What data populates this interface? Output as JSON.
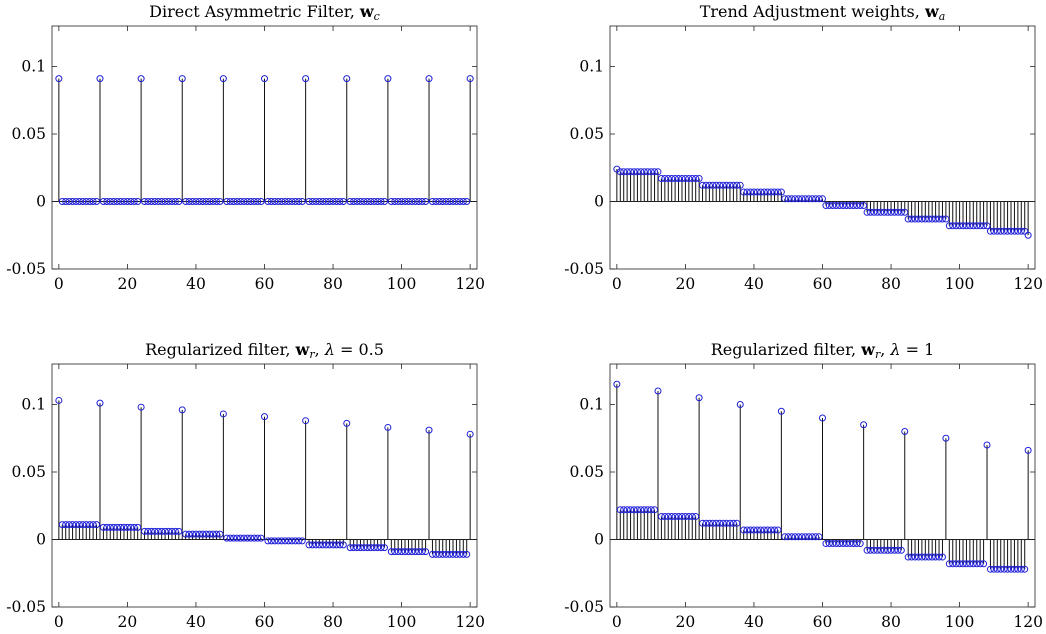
{
  "colors": {
    "marker": "#1f1fd8",
    "stem": "#111111"
  },
  "chart_data": [
    {
      "type": "stem",
      "title": "Direct Asymmetric Filter, w",
      "title_sub": "c",
      "title_lambda": "",
      "xlim": [
        -2,
        122
      ],
      "ylim": [
        -0.05,
        0.13
      ],
      "xticks": [
        0,
        20,
        40,
        60,
        80,
        100,
        120
      ],
      "xticklabels": [
        "0",
        "20",
        "40",
        "60",
        "80",
        "100",
        "120"
      ],
      "yticks": [
        -0.05,
        0,
        0.05,
        0.1
      ],
      "yticklabels": [
        "-0.05",
        "0",
        "0.05",
        "0.1"
      ],
      "spikes": [
        0.091,
        0.091,
        0.091,
        0.091,
        0.091,
        0.091,
        0.091,
        0.091,
        0.091,
        0.091,
        0.091
      ],
      "block_values": [
        0,
        0,
        0,
        0,
        0,
        0,
        0,
        0,
        0,
        0
      ],
      "spike_period": 12,
      "n_points": 121
    },
    {
      "type": "stem",
      "title": "Trend Adjustment weights, w",
      "title_sub": "a",
      "title_lambda": "",
      "xlim": [
        -2,
        122
      ],
      "ylim": [
        -0.05,
        0.13
      ],
      "xticks": [
        0,
        20,
        40,
        60,
        80,
        100,
        120
      ],
      "xticklabels": [
        "0",
        "20",
        "40",
        "60",
        "80",
        "100",
        "120"
      ],
      "yticks": [
        -0.05,
        0,
        0.05,
        0.1
      ],
      "yticklabels": [
        "-0.05",
        "0",
        "0.05",
        "0.1"
      ],
      "spikes": [
        0.024,
        0.022,
        0.017,
        0.012,
        0.007,
        0.002,
        -0.003,
        -0.008,
        -0.013,
        -0.018,
        -0.022
      ],
      "block_values": [
        0.022,
        0.017,
        0.012,
        0.007,
        0.002,
        -0.003,
        -0.008,
        -0.013,
        -0.018,
        -0.022
      ],
      "spike_period": 12,
      "n_points": 121,
      "last_value": -0.025
    },
    {
      "type": "stem",
      "title": "Regularized filter, w",
      "title_sub": "r",
      "title_lambda": "0.5",
      "xlim": [
        -2,
        122
      ],
      "ylim": [
        -0.05,
        0.13
      ],
      "xticks": [
        0,
        20,
        40,
        60,
        80,
        100,
        120
      ],
      "xticklabels": [
        "0",
        "20",
        "40",
        "60",
        "80",
        "100",
        "120"
      ],
      "yticks": [
        -0.05,
        0,
        0.05,
        0.1
      ],
      "yticklabels": [
        "-0.05",
        "0",
        "0.05",
        "0.1"
      ],
      "spikes": [
        0.103,
        0.101,
        0.098,
        0.096,
        0.093,
        0.091,
        0.088,
        0.086,
        0.083,
        0.081,
        0.078
      ],
      "block_values": [
        0.011,
        0.009,
        0.006,
        0.004,
        0.001,
        -0.001,
        -0.004,
        -0.006,
        -0.009,
        -0.011
      ],
      "spike_period": 12,
      "n_points": 121
    },
    {
      "type": "stem",
      "title": "Regularized filter, w",
      "title_sub": "r",
      "title_lambda": "1",
      "xlim": [
        -2,
        122
      ],
      "ylim": [
        -0.05,
        0.13
      ],
      "xticks": [
        0,
        20,
        40,
        60,
        80,
        100,
        120
      ],
      "xticklabels": [
        "0",
        "20",
        "40",
        "60",
        "80",
        "100",
        "120"
      ],
      "yticks": [
        -0.05,
        0,
        0.05,
        0.1
      ],
      "yticklabels": [
        "-0.05",
        "0",
        "0.05",
        "0.1"
      ],
      "spikes": [
        0.115,
        0.11,
        0.105,
        0.1,
        0.095,
        0.09,
        0.085,
        0.08,
        0.075,
        0.07,
        0.066
      ],
      "block_values": [
        0.022,
        0.017,
        0.012,
        0.007,
        0.002,
        -0.003,
        -0.008,
        -0.013,
        -0.018,
        -0.022
      ],
      "spike_period": 12,
      "n_points": 121
    }
  ]
}
